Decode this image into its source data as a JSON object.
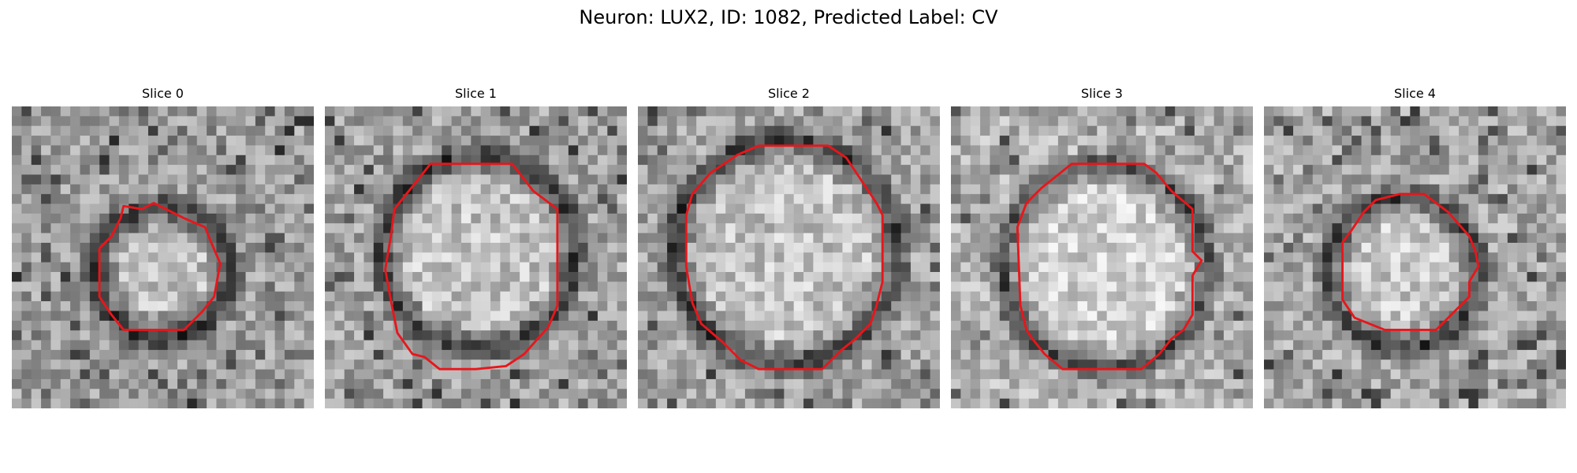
{
  "figure": {
    "title": "Neuron: LUX2, ID: 1082, Predicted Label: CV"
  },
  "panels": [
    {
      "title": "Slice 0",
      "center": [
        0.5,
        0.55
      ],
      "ring_radius": 0.22,
      "inner_radius": 0.14,
      "brightness": 0.62,
      "seed": 11,
      "outline": [
        [
          0.37,
          0.33
        ],
        [
          0.43,
          0.34
        ],
        [
          0.47,
          0.32
        ],
        [
          0.57,
          0.37
        ],
        [
          0.64,
          0.4
        ],
        [
          0.66,
          0.45
        ],
        [
          0.69,
          0.52
        ],
        [
          0.67,
          0.63
        ],
        [
          0.63,
          0.68
        ],
        [
          0.57,
          0.74
        ],
        [
          0.52,
          0.74
        ],
        [
          0.45,
          0.74
        ],
        [
          0.37,
          0.74
        ],
        [
          0.33,
          0.69
        ],
        [
          0.29,
          0.63
        ],
        [
          0.29,
          0.47
        ],
        [
          0.33,
          0.43
        ],
        [
          0.36,
          0.37
        ]
      ]
    },
    {
      "title": "Slice 1",
      "center": [
        0.51,
        0.48
      ],
      "ring_radius": 0.32,
      "inner_radius": 0.25,
      "brightness": 0.64,
      "seed": 23,
      "outline": [
        [
          0.35,
          0.19
        ],
        [
          0.45,
          0.19
        ],
        [
          0.62,
          0.19
        ],
        [
          0.69,
          0.28
        ],
        [
          0.77,
          0.34
        ],
        [
          0.77,
          0.53
        ],
        [
          0.77,
          0.66
        ],
        [
          0.74,
          0.73
        ],
        [
          0.66,
          0.82
        ],
        [
          0.6,
          0.86
        ],
        [
          0.5,
          0.87
        ],
        [
          0.38,
          0.87
        ],
        [
          0.33,
          0.83
        ],
        [
          0.29,
          0.82
        ],
        [
          0.24,
          0.75
        ],
        [
          0.22,
          0.65
        ],
        [
          0.2,
          0.54
        ],
        [
          0.22,
          0.42
        ],
        [
          0.23,
          0.34
        ],
        [
          0.31,
          0.24
        ]
      ]
    },
    {
      "title": "Slice 2",
      "center": [
        0.49,
        0.48
      ],
      "ring_radius": 0.37,
      "inner_radius": 0.29,
      "brightness": 0.64,
      "seed": 37,
      "outline": [
        [
          0.33,
          0.16
        ],
        [
          0.4,
          0.13
        ],
        [
          0.48,
          0.13
        ],
        [
          0.63,
          0.13
        ],
        [
          0.69,
          0.17
        ],
        [
          0.75,
          0.26
        ],
        [
          0.79,
          0.32
        ],
        [
          0.81,
          0.36
        ],
        [
          0.81,
          0.58
        ],
        [
          0.79,
          0.66
        ],
        [
          0.77,
          0.72
        ],
        [
          0.72,
          0.77
        ],
        [
          0.67,
          0.81
        ],
        [
          0.61,
          0.87
        ],
        [
          0.5,
          0.87
        ],
        [
          0.4,
          0.87
        ],
        [
          0.34,
          0.84
        ],
        [
          0.28,
          0.78
        ],
        [
          0.21,
          0.72
        ],
        [
          0.18,
          0.65
        ],
        [
          0.16,
          0.53
        ],
        [
          0.16,
          0.36
        ],
        [
          0.18,
          0.29
        ],
        [
          0.24,
          0.22
        ]
      ]
    },
    {
      "title": "Slice 3",
      "center": [
        0.51,
        0.53
      ],
      "ring_radius": 0.34,
      "inner_radius": 0.26,
      "brightness": 0.7,
      "seed": 53,
      "outline": [
        [
          0.4,
          0.19
        ],
        [
          0.53,
          0.19
        ],
        [
          0.64,
          0.19
        ],
        [
          0.68,
          0.22
        ],
        [
          0.73,
          0.28
        ],
        [
          0.8,
          0.34
        ],
        [
          0.8,
          0.48
        ],
        [
          0.83,
          0.51
        ],
        [
          0.8,
          0.56
        ],
        [
          0.8,
          0.69
        ],
        [
          0.77,
          0.74
        ],
        [
          0.73,
          0.77
        ],
        [
          0.69,
          0.82
        ],
        [
          0.63,
          0.87
        ],
        [
          0.54,
          0.87
        ],
        [
          0.37,
          0.87
        ],
        [
          0.31,
          0.82
        ],
        [
          0.27,
          0.77
        ],
        [
          0.25,
          0.74
        ],
        [
          0.23,
          0.66
        ],
        [
          0.22,
          0.4
        ],
        [
          0.25,
          0.32
        ],
        [
          0.3,
          0.27
        ],
        [
          0.35,
          0.23
        ]
      ]
    },
    {
      "title": "Slice 4",
      "center": [
        0.46,
        0.55
      ],
      "ring_radius": 0.25,
      "inner_radius": 0.17,
      "brightness": 0.66,
      "seed": 71,
      "outline": [
        [
          0.37,
          0.31
        ],
        [
          0.45,
          0.29
        ],
        [
          0.53,
          0.29
        ],
        [
          0.61,
          0.35
        ],
        [
          0.68,
          0.43
        ],
        [
          0.7,
          0.48
        ],
        [
          0.71,
          0.53
        ],
        [
          0.68,
          0.58
        ],
        [
          0.68,
          0.63
        ],
        [
          0.62,
          0.69
        ],
        [
          0.57,
          0.74
        ],
        [
          0.49,
          0.74
        ],
        [
          0.4,
          0.74
        ],
        [
          0.3,
          0.7
        ],
        [
          0.26,
          0.64
        ],
        [
          0.26,
          0.45
        ],
        [
          0.29,
          0.41
        ],
        [
          0.33,
          0.35
        ]
      ]
    }
  ],
  "colors": {
    "outline": "#e8161b",
    "background": "#ffffff"
  }
}
